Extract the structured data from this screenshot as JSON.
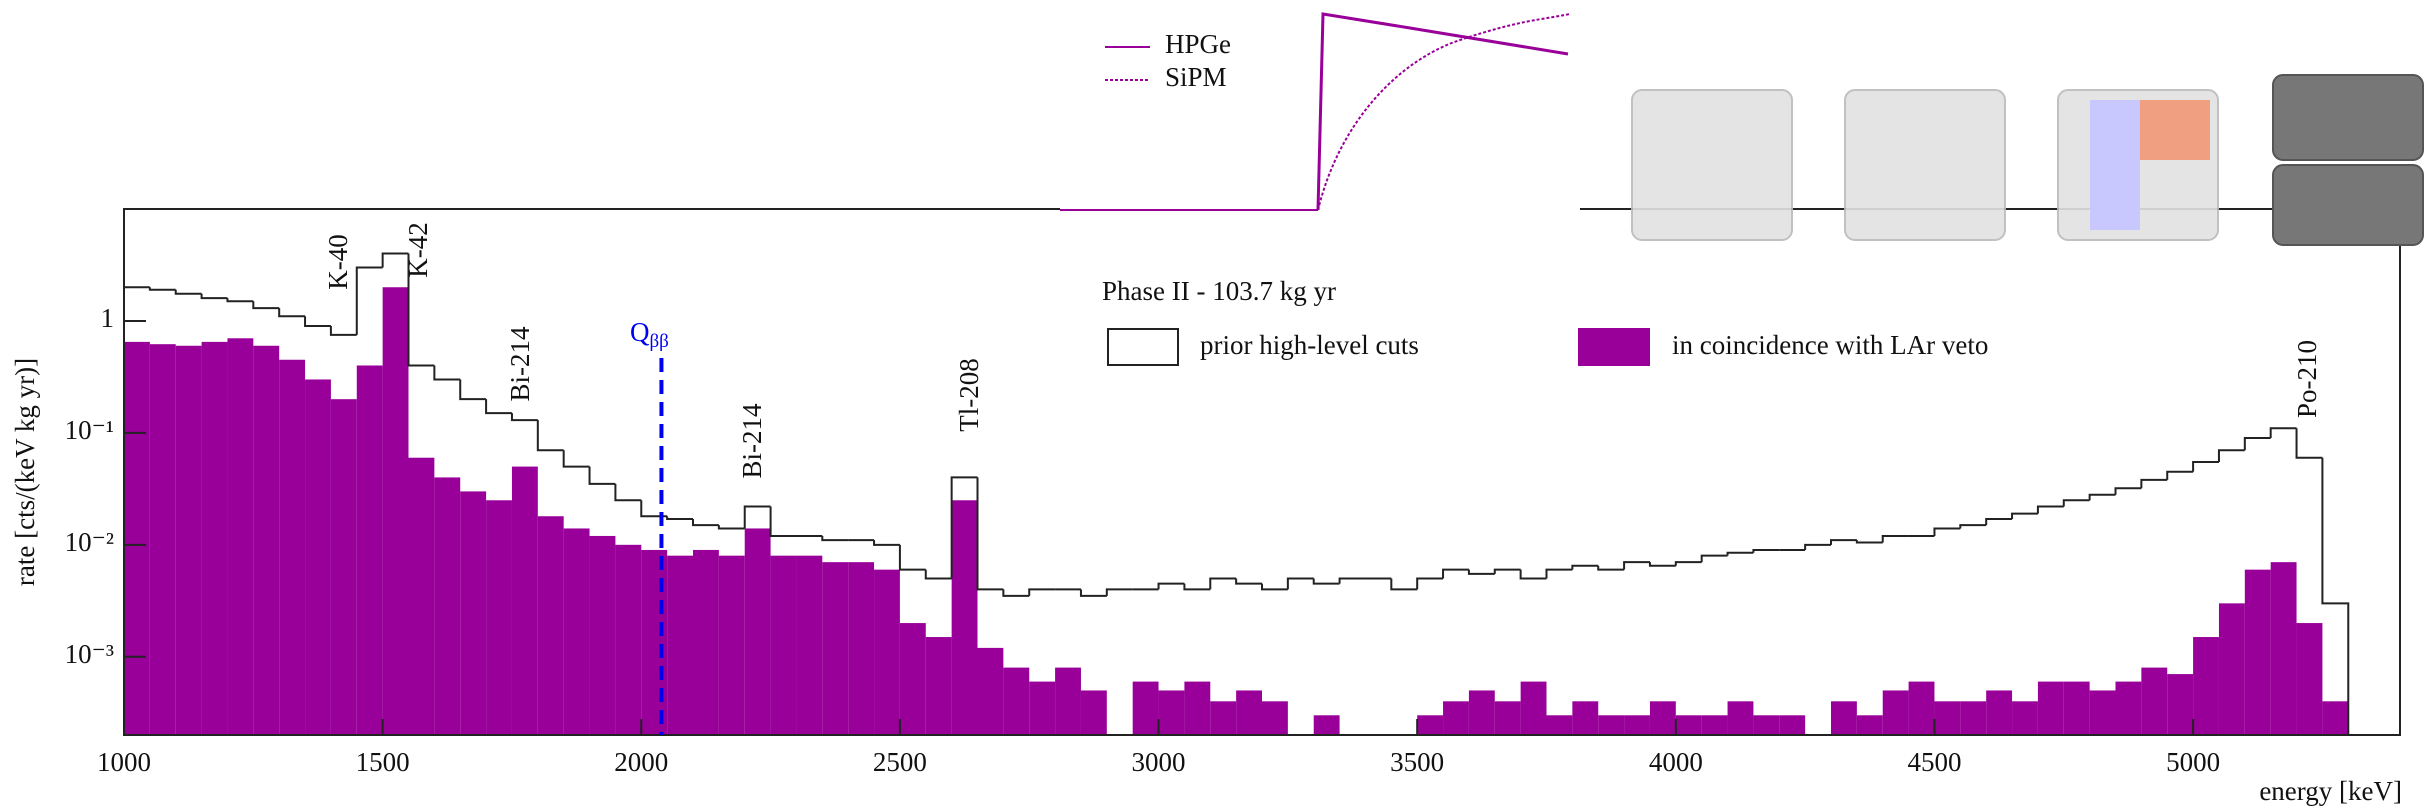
{
  "chart_data": {
    "type": "histogram",
    "xlabel": "energy [keV]",
    "ylabel": "rate [cts/(keV kg yr)]",
    "xlim": [
      1000,
      5400
    ],
    "ylim": [
      0.0002,
      10
    ],
    "log_y": true,
    "xticks": [
      1000,
      1500,
      2000,
      2500,
      3000,
      3500,
      4000,
      4500,
      5000
    ],
    "yticks": [
      {
        "value": 0.001,
        "label": "10⁻³"
      },
      {
        "value": 0.01,
        "label": "10⁻²"
      },
      {
        "value": 0.1,
        "label": "10⁻¹"
      },
      1
    ],
    "legend_title": "Phase II - 103.7 kg yr",
    "bins": [
      1000,
      1050,
      1100,
      1150,
      1200,
      1250,
      1300,
      1350,
      1400,
      1450,
      1500,
      1550,
      1600,
      1650,
      1700,
      1750,
      1800,
      1850,
      1900,
      1950,
      2000,
      2050,
      2100,
      2150,
      2200,
      2250,
      2300,
      2350,
      2400,
      2450,
      2500,
      2550,
      2600,
      2650,
      2700,
      2750,
      2800,
      2850,
      2900,
      2950,
      3000,
      3050,
      3100,
      3150,
      3200,
      3250,
      3300,
      3350,
      3400,
      3450,
      3500,
      3550,
      3600,
      3650,
      3700,
      3750,
      3800,
      3850,
      3900,
      3950,
      4000,
      4050,
      4100,
      4150,
      4200,
      4250,
      4300,
      4350,
      4400,
      4450,
      4500,
      4550,
      4600,
      4650,
      4700,
      4750,
      4800,
      4850,
      4900,
      4950,
      5000,
      5050,
      5100,
      5150,
      5200,
      5250,
      5300
    ],
    "series": [
      {
        "name": "in coincidence with LAr veto",
        "color": "#990099",
        "style": "filled",
        "values": [
          0.65,
          0.62,
          0.6,
          0.65,
          0.7,
          0.6,
          0.45,
          0.3,
          0.2,
          0.4,
          2,
          0.06,
          0.04,
          0.03,
          0.025,
          0.05,
          0.018,
          0.014,
          0.012,
          0.01,
          0.009,
          0.008,
          0.009,
          0.008,
          0.014,
          0.008,
          0.008,
          0.007,
          0.007,
          0.006,
          0.002,
          0.0015,
          0.025,
          0.0012,
          0.0008,
          0.0006,
          0.0008,
          0.0005,
          null,
          0.0006,
          0.0005,
          0.0006,
          0.0004,
          0.0005,
          0.0004,
          null,
          0.0003,
          null,
          null,
          null,
          0.0003,
          0.0004,
          0.0005,
          0.0004,
          0.0006,
          0.0003,
          0.0004,
          0.0003,
          0.0003,
          0.0004,
          0.0003,
          0.0003,
          0.0004,
          0.0003,
          0.0003,
          null,
          0.0004,
          0.0003,
          0.0005,
          0.0006,
          0.0004,
          0.0004,
          0.0005,
          0.0004,
          0.0006,
          0.0006,
          0.0005,
          0.0006,
          0.0008,
          0.0007,
          0.0015,
          0.003,
          0.006,
          0.007,
          0.002,
          0.0004
        ]
      },
      {
        "name": "prior high-level cuts",
        "color": "#222222",
        "style": "outline",
        "values": [
          2.0,
          1.9,
          1.75,
          1.6,
          1.5,
          1.3,
          1.1,
          0.9,
          0.75,
          3,
          4,
          0.4,
          0.3,
          0.2,
          0.15,
          0.13,
          0.07,
          0.05,
          0.035,
          0.025,
          0.018,
          0.017,
          0.015,
          0.014,
          0.022,
          0.012,
          0.012,
          0.011,
          0.011,
          0.01,
          0.006,
          0.005,
          0.04,
          0.004,
          0.0035,
          0.004,
          0.004,
          0.0035,
          0.004,
          0.004,
          0.0045,
          0.004,
          0.005,
          0.0045,
          0.004,
          0.005,
          0.0045,
          0.005,
          0.005,
          0.004,
          0.005,
          0.006,
          0.0055,
          0.006,
          0.005,
          0.006,
          0.0065,
          0.006,
          0.007,
          0.0065,
          0.007,
          0.008,
          0.0085,
          0.009,
          0.009,
          0.01,
          0.011,
          0.0105,
          0.012,
          0.012,
          0.014,
          0.015,
          0.017,
          0.019,
          0.022,
          0.025,
          0.028,
          0.032,
          0.038,
          0.045,
          0.055,
          0.07,
          0.09,
          0.11,
          0.06,
          0.003
        ]
      }
    ],
    "annotations": [
      "K-40",
      "K-42",
      "Bi-214",
      "Bi-214",
      "Tl-208",
      "Po-210"
    ],
    "q_marker": {
      "label": "Q",
      "subscript": "ββ",
      "value": 2039,
      "color": "#0000ee"
    },
    "inset": {
      "legend": [
        "HPGe",
        "SiPM"
      ]
    }
  }
}
